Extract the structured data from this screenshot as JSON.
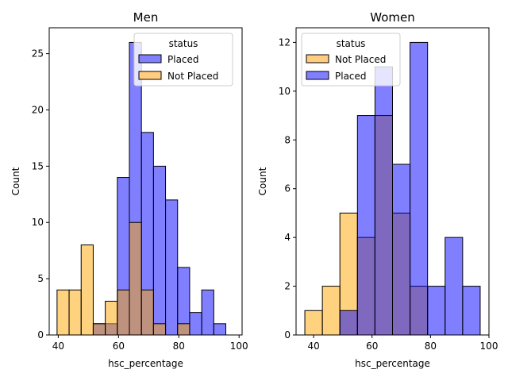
{
  "chart_data": [
    {
      "type": "bar",
      "title": "Men",
      "xlabel": "hsc_percentage",
      "ylabel": "Count",
      "xlim": [
        37,
        101
      ],
      "ylim": [
        0,
        27.3
      ],
      "xticks": [
        40,
        60,
        80,
        100
      ],
      "yticks": [
        0,
        5,
        10,
        15,
        20,
        25
      ],
      "legend": {
        "title": "status",
        "placement": "top-right",
        "entries": [
          {
            "label": "Placed",
            "color": "#7f7fff"
          },
          {
            "label": "Not Placed",
            "color": "#ffcc80"
          }
        ]
      },
      "series": [
        {
          "name": "Placed",
          "color": "#0000ff",
          "bins": [
            {
              "x0": 51.6,
              "x1": 55.6,
              "count": 1
            },
            {
              "x0": 55.6,
              "x1": 59.6,
              "count": 1
            },
            {
              "x0": 59.6,
              "x1": 63.6,
              "count": 14
            },
            {
              "x0": 63.6,
              "x1": 67.6,
              "count": 26
            },
            {
              "x0": 67.6,
              "x1": 71.6,
              "count": 18
            },
            {
              "x0": 71.6,
              "x1": 75.6,
              "count": 15
            },
            {
              "x0": 75.6,
              "x1": 79.6,
              "count": 12
            },
            {
              "x0": 79.6,
              "x1": 83.6,
              "count": 6
            },
            {
              "x0": 83.6,
              "x1": 87.6,
              "count": 2
            },
            {
              "x0": 87.6,
              "x1": 91.6,
              "count": 4
            },
            {
              "x0": 91.6,
              "x1": 95.6,
              "count": 1
            }
          ]
        },
        {
          "name": "Not Placed",
          "color": "#ffa500",
          "bins": [
            {
              "x0": 39.6,
              "x1": 43.6,
              "count": 4
            },
            {
              "x0": 43.6,
              "x1": 47.6,
              "count": 4
            },
            {
              "x0": 47.6,
              "x1": 51.6,
              "count": 8
            },
            {
              "x0": 51.6,
              "x1": 55.6,
              "count": 1
            },
            {
              "x0": 55.6,
              "x1": 59.6,
              "count": 3
            },
            {
              "x0": 59.6,
              "x1": 63.6,
              "count": 4
            },
            {
              "x0": 63.6,
              "x1": 67.6,
              "count": 10
            },
            {
              "x0": 67.6,
              "x1": 71.6,
              "count": 4
            },
            {
              "x0": 71.6,
              "x1": 75.6,
              "count": 1
            },
            {
              "x0": 79.6,
              "x1": 83.6,
              "count": 1
            }
          ]
        }
      ]
    },
    {
      "type": "bar",
      "title": "Women",
      "xlabel": "hsc_percentage",
      "ylabel": "Count",
      "xlim": [
        34,
        100
      ],
      "ylim": [
        0,
        12.6
      ],
      "xticks": [
        40,
        60,
        80,
        100
      ],
      "yticks": [
        0,
        2,
        4,
        6,
        8,
        10,
        12
      ],
      "legend": {
        "title": "status",
        "placement": "top-left",
        "entries": [
          {
            "label": "Not Placed",
            "color": "#ffcc80"
          },
          {
            "label": "Placed",
            "color": "#7f7fff"
          }
        ]
      },
      "series": [
        {
          "name": "Not Placed",
          "color": "#ffa500",
          "bins": [
            {
              "x0": 37,
              "x1": 43,
              "count": 1
            },
            {
              "x0": 43,
              "x1": 49,
              "count": 2
            },
            {
              "x0": 49,
              "x1": 55,
              "count": 5
            },
            {
              "x0": 55,
              "x1": 61,
              "count": 4
            },
            {
              "x0": 61,
              "x1": 67,
              "count": 9
            },
            {
              "x0": 67,
              "x1": 73,
              "count": 5
            },
            {
              "x0": 73,
              "x1": 79,
              "count": 2
            }
          ]
        },
        {
          "name": "Placed",
          "color": "#0000ff",
          "bins": [
            {
              "x0": 49,
              "x1": 55,
              "count": 1
            },
            {
              "x0": 55,
              "x1": 61,
              "count": 9
            },
            {
              "x0": 61,
              "x1": 67,
              "count": 11
            },
            {
              "x0": 67,
              "x1": 73,
              "count": 7
            },
            {
              "x0": 73,
              "x1": 79,
              "count": 12
            },
            {
              "x0": 79,
              "x1": 85,
              "count": 2
            },
            {
              "x0": 85,
              "x1": 91,
              "count": 4
            },
            {
              "x0": 91,
              "x1": 97,
              "count": 2
            }
          ]
        }
      ]
    }
  ]
}
